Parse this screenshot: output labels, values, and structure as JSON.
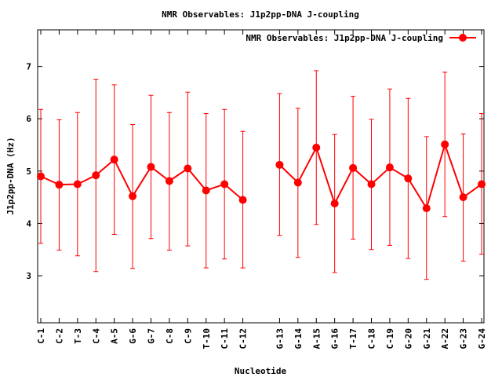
{
  "chart_data": {
    "type": "line",
    "title": "NMR Observables: J1p2pp-DNA J-coupling",
    "xlabel": "Nucleotide",
    "ylabel": "J1p2pp-DNA (Hz)",
    "ylim": [
      2.1,
      7.7
    ],
    "yticks": [
      3,
      4,
      5,
      6,
      7
    ],
    "grid": false,
    "legend_position": "top-right",
    "series": [
      {
        "name": "NMR Observables: J1p2pp-DNA J-coupling",
        "color": "#ff0000",
        "marker": "circle",
        "points": [
          {
            "x": 1,
            "label": "C-1",
            "y": 4.9,
            "lo": 3.62,
            "hi": 6.18
          },
          {
            "x": 2,
            "label": "C-2",
            "y": 4.74,
            "lo": 3.49,
            "hi": 5.98
          },
          {
            "x": 3,
            "label": "T-3",
            "y": 4.75,
            "lo": 3.38,
            "hi": 6.12
          },
          {
            "x": 4,
            "label": "C-4",
            "y": 4.92,
            "lo": 3.08,
            "hi": 6.75
          },
          {
            "x": 5,
            "label": "A-5",
            "y": 5.22,
            "lo": 3.79,
            "hi": 6.65
          },
          {
            "x": 6,
            "label": "G-6",
            "y": 4.52,
            "lo": 3.14,
            "hi": 5.89
          },
          {
            "x": 7,
            "label": "G-7",
            "y": 5.08,
            "lo": 3.71,
            "hi": 6.45
          },
          {
            "x": 8,
            "label": "C-8",
            "y": 4.81,
            "lo": 3.49,
            "hi": 6.12
          },
          {
            "x": 9,
            "label": "C-9",
            "y": 5.05,
            "lo": 3.57,
            "hi": 6.51
          },
          {
            "x": 10,
            "label": "T-10",
            "y": 4.63,
            "lo": 3.15,
            "hi": 6.1
          },
          {
            "x": 11,
            "label": "C-11",
            "y": 4.75,
            "lo": 3.32,
            "hi": 6.18
          },
          {
            "x": 12,
            "label": "C-12",
            "y": 4.45,
            "lo": 3.15,
            "hi": 5.76
          },
          {
            "x": 14,
            "label": "G-13",
            "y": 5.12,
            "lo": 3.77,
            "hi": 6.48
          },
          {
            "x": 15,
            "label": "G-14",
            "y": 4.78,
            "lo": 3.35,
            "hi": 6.2
          },
          {
            "x": 16,
            "label": "A-15",
            "y": 5.45,
            "lo": 3.98,
            "hi": 6.92
          },
          {
            "x": 17,
            "label": "G-16",
            "y": 4.38,
            "lo": 3.06,
            "hi": 5.7
          },
          {
            "x": 18,
            "label": "T-17",
            "y": 5.06,
            "lo": 3.7,
            "hi": 6.43
          },
          {
            "x": 19,
            "label": "C-18",
            "y": 4.75,
            "lo": 3.5,
            "hi": 5.99
          },
          {
            "x": 20,
            "label": "C-19",
            "y": 5.07,
            "lo": 3.58,
            "hi": 6.57
          },
          {
            "x": 21,
            "label": "G-20",
            "y": 4.86,
            "lo": 3.33,
            "hi": 6.39
          },
          {
            "x": 22,
            "label": "G-21",
            "y": 4.29,
            "lo": 2.93,
            "hi": 5.66
          },
          {
            "x": 23,
            "label": "A-22",
            "y": 5.51,
            "lo": 4.13,
            "hi": 6.89
          },
          {
            "x": 24,
            "label": "G-23",
            "y": 4.5,
            "lo": 3.28,
            "hi": 5.71
          },
          {
            "x": 25,
            "label": "G-24",
            "y": 4.75,
            "lo": 3.41,
            "hi": 6.1
          }
        ]
      }
    ]
  }
}
